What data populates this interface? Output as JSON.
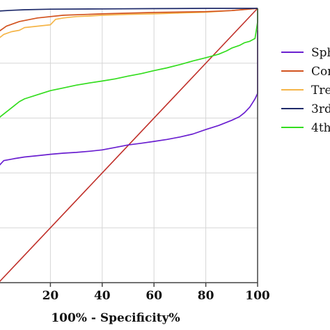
{
  "chart_data": {
    "type": "line",
    "title": "",
    "xlabel": "100% - Specificity%",
    "ylabel": "",
    "xlim": [
      0,
      100
    ],
    "ylim": [
      0,
      100
    ],
    "x_ticks": [
      "20",
      "40",
      "60",
      "80",
      "100"
    ],
    "grid": true,
    "legend_position": "right",
    "series": [
      {
        "name": "Sph",
        "color": "#6a1fd0",
        "x": [
          0,
          2,
          6,
          10,
          15,
          20,
          25,
          30,
          35,
          40,
          45,
          50,
          55,
          60,
          65,
          70,
          75,
          80,
          85,
          90,
          93,
          95,
          97,
          98,
          99,
          100,
          100
        ],
        "y": [
          42.5,
          44.5,
          45.2,
          45.8,
          46.3,
          46.8,
          47.2,
          47.5,
          47.9,
          48.4,
          49.3,
          50.2,
          50.8,
          51.5,
          52.2,
          53.1,
          54.2,
          55.8,
          57.3,
          59.2,
          60.5,
          62.0,
          64.0,
          65.5,
          67.0,
          69.0,
          92.0
        ]
      },
      {
        "name": "Con",
        "color": "#d2531f",
        "x": [
          0,
          3,
          8,
          15,
          25,
          40,
          60,
          80,
          90,
          95,
          100
        ],
        "y": [
          91.5,
          93.5,
          95.2,
          96.5,
          97.5,
          98.0,
          98.5,
          98.8,
          99.2,
          99.6,
          100
        ]
      },
      {
        "name": "Tre",
        "color": "#f5b548",
        "x": [
          0,
          2,
          5,
          8,
          10,
          15,
          20,
          22,
          25,
          30,
          35,
          40,
          50,
          60,
          70,
          80,
          90,
          100
        ],
        "y": [
          89.0,
          90.5,
          91.5,
          92.0,
          93.0,
          93.5,
          94.0,
          96.0,
          96.5,
          97.0,
          97.2,
          97.5,
          97.8,
          98.0,
          98.3,
          98.6,
          99.2,
          100
        ]
      },
      {
        "name": "3rd",
        "color": "#1e2a6a",
        "x": [
          0,
          5,
          10,
          20,
          40,
          60,
          80,
          100
        ],
        "y": [
          99.0,
          99.3,
          99.5,
          99.7,
          99.8,
          99.9,
          100,
          100
        ]
      },
      {
        "name": "4th",
        "color": "#33dd1e",
        "x": [
          0,
          2,
          4,
          6,
          8,
          10,
          15,
          20,
          25,
          30,
          35,
          40,
          45,
          50,
          55,
          60,
          65,
          70,
          75,
          80,
          85,
          88,
          90,
          93,
          95,
          97,
          99,
          100,
          100
        ],
        "y": [
          60.0,
          61.5,
          63.0,
          64.5,
          66.0,
          67.0,
          68.5,
          70.0,
          71.0,
          72.0,
          72.8,
          73.5,
          74.3,
          75.3,
          76.2,
          77.3,
          78.3,
          79.5,
          80.8,
          82.0,
          83.3,
          84.5,
          85.5,
          86.5,
          87.5,
          88.0,
          89.0,
          95.0,
          100
        ]
      },
      {
        "name": "",
        "color": "#c0302a",
        "x": [
          0,
          100
        ],
        "y": [
          0,
          100
        ]
      }
    ]
  }
}
